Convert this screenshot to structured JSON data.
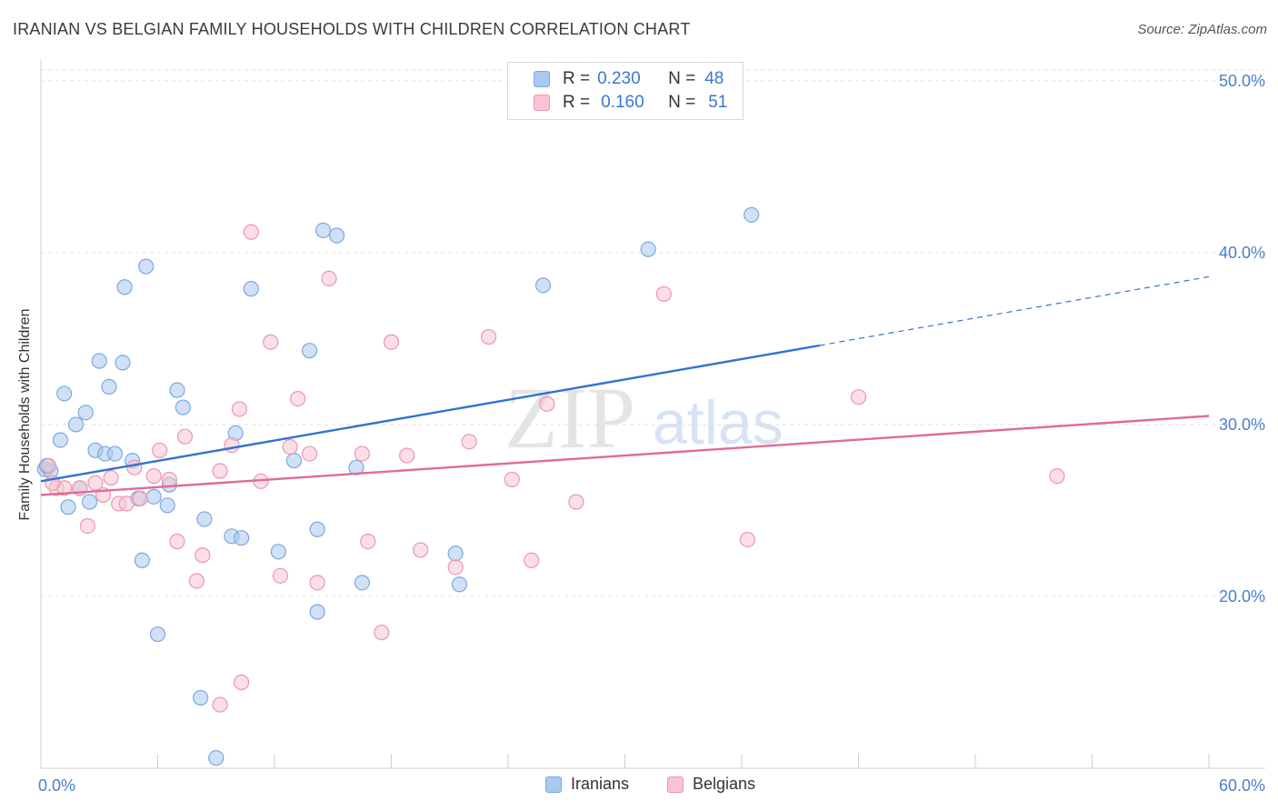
{
  "title": "IRANIAN VS BELGIAN FAMILY HOUSEHOLDS WITH CHILDREN CORRELATION CHART",
  "source": "Source: ZipAtlas.com",
  "watermark": {
    "zip": "ZIP",
    "atlas": "atlas"
  },
  "legend": {
    "rows": [
      {
        "r_label": "R =",
        "r_value": "0.230",
        "n_label": "N =",
        "n_value": "48",
        "color": "#a9c9ef",
        "border": "#7aa8e0"
      },
      {
        "r_label": "R =",
        "r_value": "0.160",
        "n_label": "N =",
        "n_value": "51",
        "color": "#f8c4d3",
        "border": "#ee95ae"
      }
    ]
  },
  "bottom_legend": [
    {
      "label": "Iranians",
      "color": "#a9c9ef",
      "border": "#7aa8e0"
    },
    {
      "label": "Belgians",
      "color": "#f8c4d3",
      "border": "#ee95ae"
    }
  ],
  "chart_data": {
    "type": "scatter",
    "title": "IRANIAN VS BELGIAN FAMILY HOUSEHOLDS WITH CHILDREN CORRELATION CHART",
    "xlabel": "",
    "ylabel": "Family Households with Children",
    "xlim": [
      0,
      60
    ],
    "ylim": [
      10,
      51
    ],
    "x_tick_labels": [
      {
        "value": 0,
        "label": "0.0%"
      },
      {
        "value": 60,
        "label": "60.0%"
      }
    ],
    "y_tick_labels": [
      {
        "value": 20,
        "label": "20.0%"
      },
      {
        "value": 30,
        "label": "30.0%"
      },
      {
        "value": 40,
        "label": "40.0%"
      },
      {
        "value": 50,
        "label": "50.0%"
      }
    ],
    "y_gridlines": [
      20,
      30,
      40,
      50
    ],
    "x_minor_ticks": [
      6,
      12,
      18,
      24,
      30,
      36,
      42,
      48,
      54,
      60
    ],
    "series": [
      {
        "name": "Iranians",
        "color": "#7aa8e0",
        "fill": "#a9c9ef",
        "line_color": "#2f74d0",
        "trend": {
          "x0": 0,
          "y0": 26.7,
          "x1": 40,
          "y1": 34.6,
          "dash_to_x": 60,
          "dash_to_y": 38.6
        },
        "points": [
          [
            0.2,
            27.4
          ],
          [
            0.5,
            27.3
          ],
          [
            1.2,
            31.8
          ],
          [
            1.0,
            29.1
          ],
          [
            1.4,
            25.2
          ],
          [
            1.8,
            30.0
          ],
          [
            2.0,
            26.3
          ],
          [
            2.3,
            30.7
          ],
          [
            2.5,
            25.5
          ],
          [
            2.8,
            28.5
          ],
          [
            3.0,
            33.7
          ],
          [
            3.3,
            28.3
          ],
          [
            3.5,
            32.2
          ],
          [
            3.8,
            28.3
          ],
          [
            4.2,
            33.6
          ],
          [
            4.3,
            38.0
          ],
          [
            4.7,
            27.9
          ],
          [
            5.0,
            25.7
          ],
          [
            5.2,
            22.1
          ],
          [
            5.4,
            39.2
          ],
          [
            5.8,
            25.8
          ],
          [
            6.0,
            17.8
          ],
          [
            6.5,
            25.3
          ],
          [
            6.6,
            26.5
          ],
          [
            7.0,
            32.0
          ],
          [
            7.3,
            31.0
          ],
          [
            8.2,
            14.1
          ],
          [
            8.4,
            24.5
          ],
          [
            9.0,
            10.6
          ],
          [
            9.8,
            23.5
          ],
          [
            10.0,
            29.5
          ],
          [
            10.3,
            23.4
          ],
          [
            10.8,
            37.9
          ],
          [
            12.2,
            22.6
          ],
          [
            13.0,
            27.9
          ],
          [
            13.8,
            34.3
          ],
          [
            14.2,
            23.9
          ],
          [
            14.2,
            19.1
          ],
          [
            14.5,
            41.3
          ],
          [
            15.2,
            41.0
          ],
          [
            16.2,
            27.5
          ],
          [
            16.5,
            20.8
          ],
          [
            21.3,
            22.5
          ],
          [
            21.5,
            20.7
          ],
          [
            25.8,
            38.1
          ],
          [
            31.2,
            40.2
          ],
          [
            36.5,
            42.2
          ],
          [
            0.3,
            27.6
          ]
        ]
      },
      {
        "name": "Belgians",
        "color": "#ee95ae",
        "fill": "#f8c4d3",
        "line_color": "#e06b93",
        "trend": {
          "x0": 0,
          "y0": 25.9,
          "x1": 60,
          "y1": 30.5
        },
        "points": [
          [
            0.4,
            27.6
          ],
          [
            0.8,
            26.3
          ],
          [
            1.2,
            26.3
          ],
          [
            2.0,
            26.3
          ],
          [
            2.4,
            24.1
          ],
          [
            2.8,
            26.6
          ],
          [
            3.2,
            25.9
          ],
          [
            3.6,
            26.9
          ],
          [
            4.0,
            25.4
          ],
          [
            4.4,
            25.4
          ],
          [
            4.8,
            27.5
          ],
          [
            5.1,
            25.7
          ],
          [
            5.8,
            27.0
          ],
          [
            6.1,
            28.5
          ],
          [
            6.6,
            26.8
          ],
          [
            7.0,
            23.2
          ],
          [
            7.4,
            29.3
          ],
          [
            8.0,
            20.9
          ],
          [
            8.3,
            22.4
          ],
          [
            9.2,
            13.7
          ],
          [
            9.2,
            27.3
          ],
          [
            9.8,
            28.8
          ],
          [
            10.2,
            30.9
          ],
          [
            10.3,
            15.0
          ],
          [
            10.8,
            41.2
          ],
          [
            11.3,
            26.7
          ],
          [
            11.8,
            34.8
          ],
          [
            12.3,
            21.2
          ],
          [
            12.8,
            28.7
          ],
          [
            13.2,
            31.5
          ],
          [
            13.8,
            28.3
          ],
          [
            14.2,
            20.8
          ],
          [
            14.8,
            38.5
          ],
          [
            16.5,
            28.3
          ],
          [
            16.8,
            23.2
          ],
          [
            17.5,
            17.9
          ],
          [
            18.0,
            34.8
          ],
          [
            18.8,
            28.2
          ],
          [
            19.5,
            22.7
          ],
          [
            21.3,
            21.7
          ],
          [
            22.0,
            29.0
          ],
          [
            23.0,
            35.1
          ],
          [
            24.2,
            26.8
          ],
          [
            25.2,
            22.1
          ],
          [
            26.0,
            31.2
          ],
          [
            27.5,
            25.5
          ],
          [
            32.0,
            37.6
          ],
          [
            36.3,
            23.3
          ],
          [
            42.0,
            31.6
          ],
          [
            52.2,
            27.0
          ],
          [
            0.6,
            26.6
          ]
        ]
      }
    ]
  }
}
